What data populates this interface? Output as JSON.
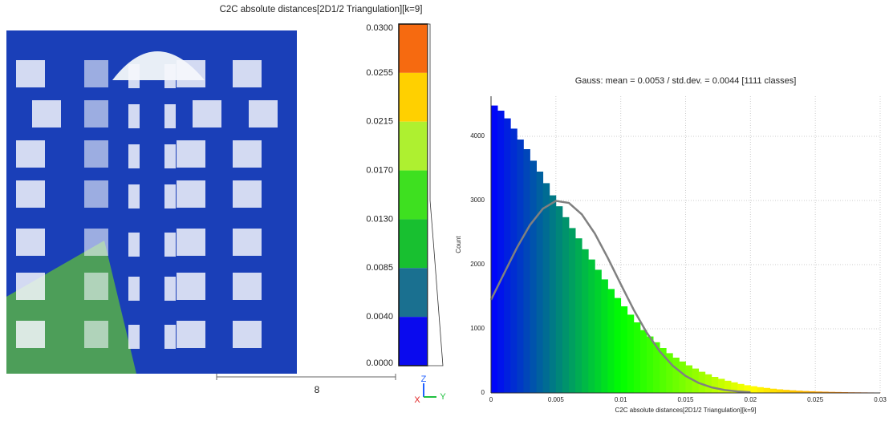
{
  "chart_data": [
    {
      "type": "colorbar",
      "title": "C2C absolute distances[2D1/2 Triangulation][k=9]",
      "labels": [
        "0.0300",
        "0.0255",
        "0.0215",
        "0.0170",
        "0.0130",
        "0.0085",
        "0.0040",
        "0.0000"
      ],
      "colors": [
        "#f66a10",
        "#ffd000",
        "#aef030",
        "#3ee020",
        "#18c030",
        "#1a7090",
        "#0a0aee"
      ]
    },
    {
      "type": "histogram",
      "title": "Gauss: mean = 0.0053 / std.dev. = 0.0044 [1111 classes]",
      "x_label": "C2C absolute distances[2D1/2 Triangulation][k=9]",
      "y_label": "Count",
      "bins": [
        0,
        0.0005,
        0.001,
        0.0015,
        0.002,
        0.0025,
        0.003,
        0.0035,
        0.004,
        0.0045,
        0.005,
        0.0055,
        0.006,
        0.0065,
        0.007,
        0.0075,
        0.008,
        0.0085,
        0.009,
        0.0095,
        0.01,
        0.0105,
        0.011,
        0.0115,
        0.012,
        0.0125,
        0.013,
        0.0135,
        0.014,
        0.0145,
        0.015,
        0.0155,
        0.016,
        0.0165,
        0.017,
        0.0175,
        0.018,
        0.0185,
        0.019,
        0.0195,
        0.02,
        0.0205,
        0.021,
        0.0215,
        0.022,
        0.0225,
        0.023,
        0.0235,
        0.024,
        0.0245,
        0.025,
        0.0255,
        0.026,
        0.0265,
        0.027,
        0.0275,
        0.028,
        0.0285,
        0.029,
        0.0295,
        0.03
      ],
      "values": [
        4480,
        4400,
        4280,
        4120,
        3950,
        3800,
        3620,
        3450,
        3270,
        3080,
        2910,
        2740,
        2570,
        2410,
        2240,
        2080,
        1920,
        1770,
        1620,
        1480,
        1350,
        1220,
        1100,
        980,
        880,
        790,
        700,
        620,
        550,
        490,
        430,
        380,
        330,
        290,
        250,
        220,
        190,
        165,
        140,
        120,
        105,
        90,
        78,
        66,
        56,
        48,
        41,
        35,
        30,
        26,
        22,
        19,
        16,
        14,
        12,
        10,
        9,
        8,
        7,
        6
      ],
      "colormap": [
        "#0000ff",
        "#00ff00",
        "#ffff00",
        "#ff5000"
      ],
      "gauss": {
        "color": "#808080",
        "x": [
          0,
          0.001,
          0.002,
          0.003,
          0.004,
          0.005,
          0.006,
          0.007,
          0.008,
          0.009,
          0.01,
          0.011,
          0.012,
          0.013,
          0.014,
          0.015,
          0.016,
          0.017,
          0.018,
          0.019,
          0.02
        ],
        "values": [
          1452,
          1861,
          2265,
          2617,
          2872,
          2993,
          2962,
          2784,
          2485,
          2106,
          1696,
          1296,
          941,
          649,
          425,
          264,
          156,
          87,
          46,
          24,
          11
        ]
      },
      "xlim": [
        0,
        0.03
      ],
      "xticks": [
        0,
        0.005,
        0.01,
        0.015,
        0.02,
        0.025,
        0.03
      ],
      "ylim": [
        0,
        4625
      ],
      "yticks": [
        0,
        1000,
        2000,
        3000,
        4000
      ],
      "grid": true
    }
  ],
  "viewer": {
    "scale_label": "8",
    "axis_labels": [
      "Z",
      "X",
      "Y"
    ]
  }
}
